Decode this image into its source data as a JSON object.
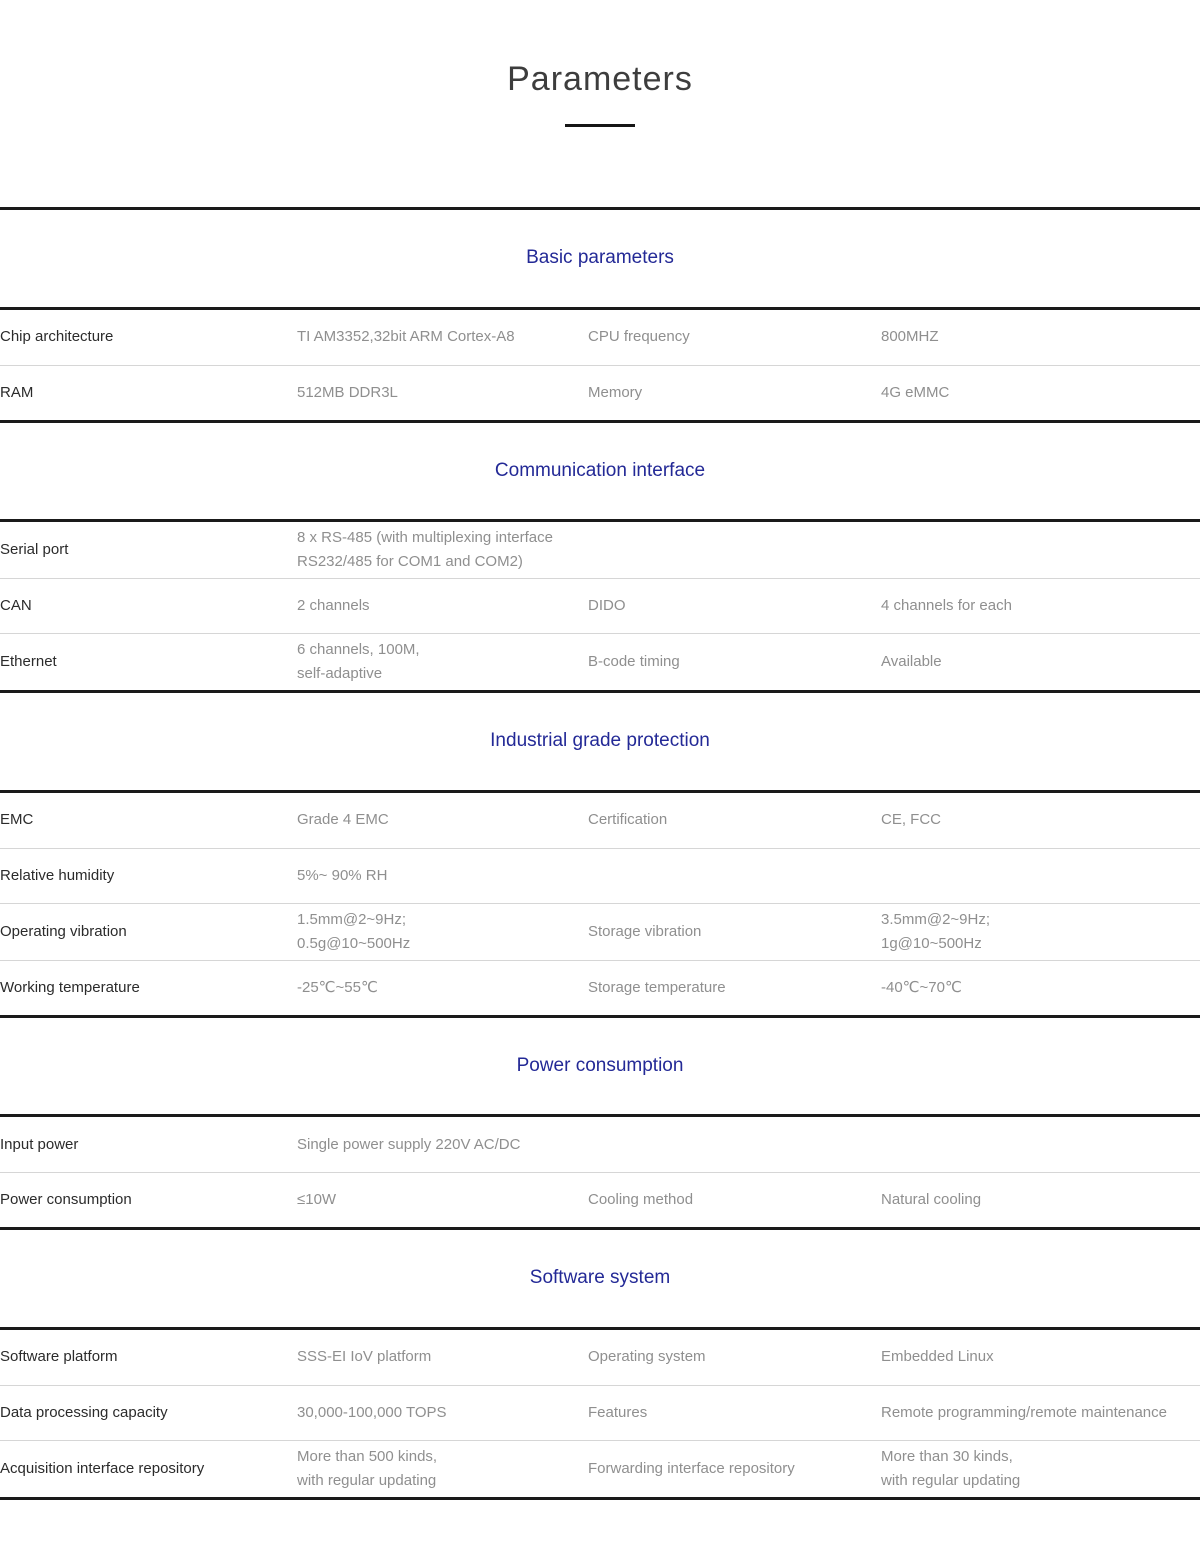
{
  "page": {
    "title": "Parameters"
  },
  "sections": [
    {
      "title": "Basic parameters",
      "rows": [
        {
          "c1": "Chip architecture",
          "c2": "TI AM3352,32bit ARM Cortex-A8",
          "c3": "CPU frequency",
          "c4": "800MHZ"
        },
        {
          "c1": "RAM",
          "c2": "512MB DDR3L",
          "c3": "Memory",
          "c4": "4G eMMC"
        }
      ]
    },
    {
      "title": "Communication interface",
      "rows": [
        {
          "c1": "Serial port",
          "c2": "8 x RS-485 (with multiplexing interface RS232/485 for COM1 and COM2)",
          "c3": "",
          "c4": ""
        },
        {
          "c1": "CAN",
          "c2": "2 channels",
          "c3": "DIDO",
          "c4": "4 channels for each"
        },
        {
          "c1": "Ethernet",
          "c2": "6 channels, 100M,\nself-adaptive",
          "c3": "B-code timing",
          "c4": "Available"
        }
      ]
    },
    {
      "title": "Industrial grade protection",
      "rows": [
        {
          "c1": "EMC",
          "c2": "Grade 4 EMC",
          "c3": "Certification",
          "c4": "CE, FCC"
        },
        {
          "c1": "Relative humidity",
          "c2": "5%~ 90% RH",
          "c3": "",
          "c4": ""
        },
        {
          "c1": "Operating vibration",
          "c2": "1.5mm@2~9Hz;\n0.5g@10~500Hz",
          "c3": "Storage vibration",
          "c4": "3.5mm@2~9Hz;\n1g@10~500Hz"
        },
        {
          "c1": "Working temperature",
          "c2": "-25℃~55℃",
          "c3": "Storage temperature",
          "c4": "-40℃~70℃"
        }
      ]
    },
    {
      "title": "Power consumption",
      "rows": [
        {
          "c1": "Input power",
          "c2": "Single power supply 220V AC/DC",
          "c3": "",
          "c4": ""
        },
        {
          "c1": "Power consumption",
          "c2": "≤10W",
          "c3": "Cooling method",
          "c4": "Natural cooling"
        }
      ]
    },
    {
      "title": "Software system",
      "rows": [
        {
          "c1": "Software platform",
          "c2": "SSS-EI IoV platform",
          "c3": "Operating system",
          "c4": "Embedded Linux"
        },
        {
          "c1": "Data processing capacity",
          "c2": "30,000-100,000 TOPS",
          "c3": "Features",
          "c4": "Remote programming/remote maintenance"
        },
        {
          "c1": "Acquisition interface repository",
          "c2": "More than 500 kinds,\nwith regular updating",
          "c3": "Forwarding interface repository",
          "c4": "More than 30 kinds,\nwith regular updating"
        }
      ]
    }
  ],
  "accent_colors": {
    "section_title": "#232996",
    "rule": "#1a1a1a",
    "divider": "#d6d6d6",
    "label_text": "#2b2b2b",
    "value_text": "#8f8f8f"
  }
}
